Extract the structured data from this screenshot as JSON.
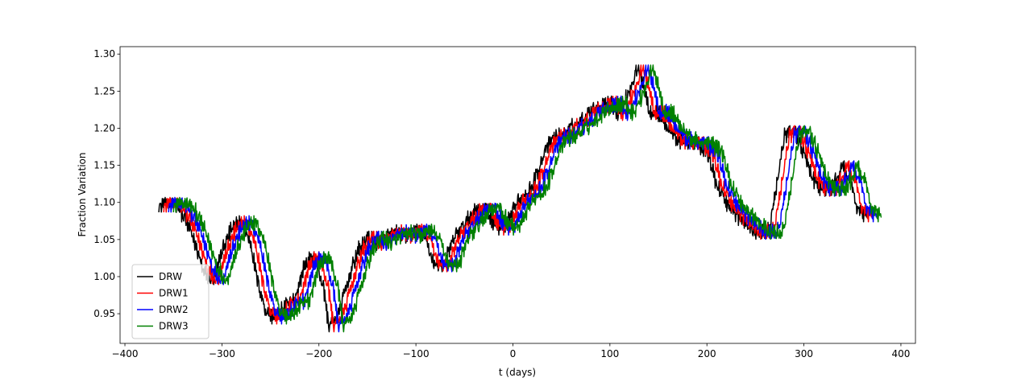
{
  "chart_data": {
    "type": "line",
    "title": "",
    "xlabel": "t (days)",
    "ylabel": "Fraction Variation",
    "xlim": [
      -405,
      415
    ],
    "ylim": [
      0.91,
      1.31
    ],
    "xticks": [
      -400,
      -300,
      -200,
      -100,
      0,
      100,
      200,
      300,
      400
    ],
    "xtick_labels": [
      "−400",
      "−300",
      "−200",
      "−100",
      "0",
      "100",
      "200",
      "300",
      "400"
    ],
    "yticks": [
      0.95,
      1.0,
      1.05,
      1.1,
      1.15,
      1.2,
      1.25,
      1.3
    ],
    "ytick_labels": [
      "0.95",
      "1.00",
      "1.05",
      "1.10",
      "1.15",
      "1.20",
      "1.25",
      "1.30"
    ],
    "grid": false,
    "legend_position": "lower-left",
    "noise_amplitude": 0.012,
    "base_curve": {
      "t": [
        -365,
        -350,
        -340,
        -330,
        -320,
        -310,
        -300,
        -290,
        -280,
        -270,
        -265,
        -255,
        -245,
        -235,
        -225,
        -215,
        -205,
        -195,
        -190,
        -180,
        -170,
        -160,
        -150,
        -140,
        -130,
        -120,
        -110,
        -100,
        -90,
        -80,
        -70,
        -60,
        -50,
        -40,
        -30,
        -20,
        -10,
        0,
        10,
        20,
        30,
        40,
        50,
        60,
        70,
        80,
        90,
        100,
        110,
        120,
        128,
        135,
        140,
        150,
        160,
        170,
        180,
        190,
        200,
        210,
        220,
        230,
        240,
        250,
        260,
        265,
        270,
        280,
        290,
        300,
        310,
        320,
        330,
        340,
        350,
        355,
        360,
        365
      ],
      "y": [
        1.1,
        1.105,
        1.09,
        1.06,
        1.02,
        1.0,
        1.04,
        1.07,
        1.08,
        1.05,
        1.01,
        0.96,
        0.95,
        0.965,
        0.975,
        1.02,
        1.035,
        0.99,
        0.94,
        0.955,
        1.0,
        1.04,
        1.06,
        1.05,
        1.06,
        1.065,
        1.06,
        1.07,
        1.055,
        1.02,
        1.025,
        1.06,
        1.075,
        1.095,
        1.1,
        1.08,
        1.07,
        1.09,
        1.11,
        1.12,
        1.16,
        1.185,
        1.19,
        1.2,
        1.21,
        1.225,
        1.23,
        1.235,
        1.22,
        1.25,
        1.28,
        1.26,
        1.225,
        1.22,
        1.2,
        1.185,
        1.18,
        1.18,
        1.17,
        1.125,
        1.1,
        1.085,
        1.07,
        1.06,
        1.06,
        1.07,
        1.11,
        1.19,
        1.2,
        1.165,
        1.13,
        1.115,
        1.12,
        1.15,
        1.12,
        1.09,
        1.085,
        1.09
      ]
    },
    "series": [
      {
        "name": "DRW",
        "color": "#000000",
        "lag_days": 0,
        "x_start": -365,
        "x_end": 365
      },
      {
        "name": "DRW1",
        "color": "#ff0000",
        "lag_days": 5,
        "x_start": -360,
        "x_end": 370
      },
      {
        "name": "DRW2",
        "color": "#0000ff",
        "lag_days": 10,
        "x_start": -355,
        "x_end": 375
      },
      {
        "name": "DRW3",
        "color": "#008000",
        "lag_days": 15,
        "x_start": -350,
        "x_end": 380
      }
    ]
  }
}
